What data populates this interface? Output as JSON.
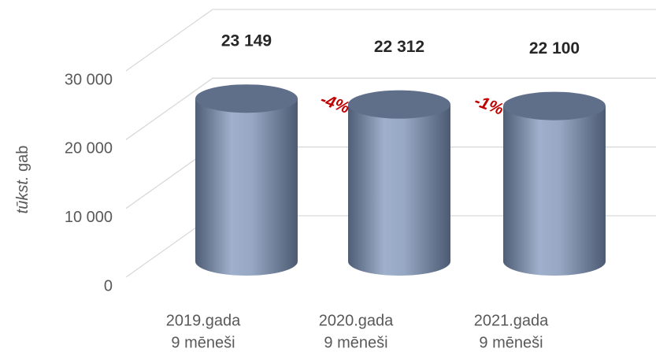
{
  "chart_data": {
    "type": "bar",
    "y_label": [
      "tūkst.",
      "gab"
    ],
    "categories": [
      [
        "2019.gada",
        "9 mēneši"
      ],
      [
        "2020.gada",
        "9 mēneši"
      ],
      [
        "2021.gada",
        "9 mēneši"
      ]
    ],
    "values": [
      23149,
      22312,
      22100
    ],
    "value_labels": [
      "23 149",
      "22 312",
      "22 100"
    ],
    "annotations": [
      "-4%",
      "-1%"
    ],
    "color": "#8595b0",
    "ylim": [
      0,
      30000
    ],
    "yticks": [
      0,
      {
        "value": 10000,
        "label": "10 000"
      },
      {
        "value": 20000,
        "label": "20 000"
      },
      {
        "value": 30000,
        "label": "30 000"
      }
    ],
    "grid": true
  }
}
